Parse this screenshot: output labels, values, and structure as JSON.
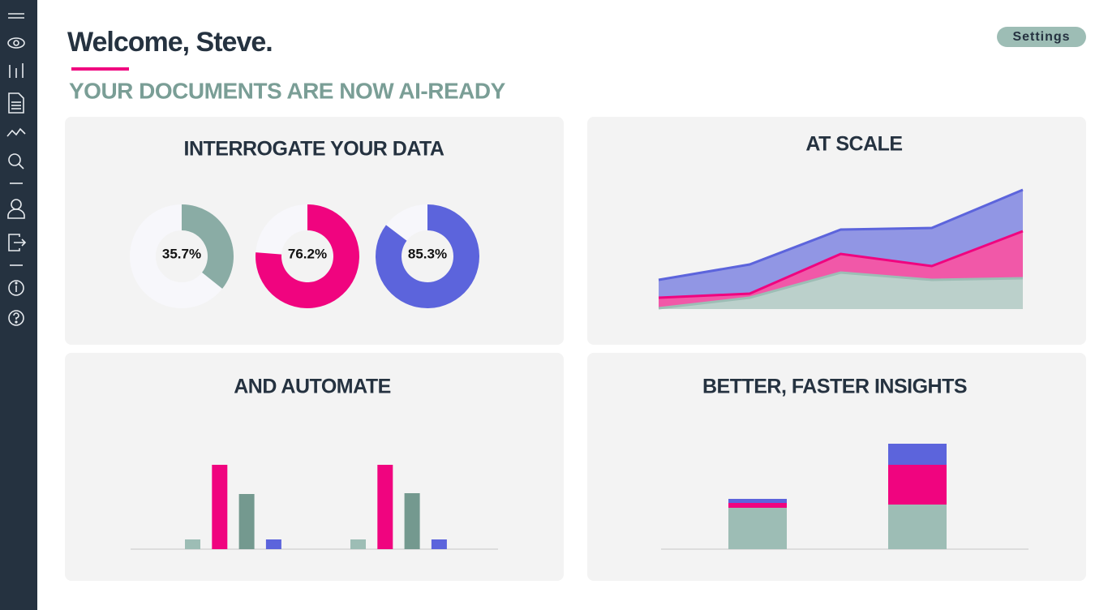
{
  "header": {
    "title": "Welcome, Steve.",
    "subtitle": "YOUR DOCUMENTS ARE NOW AI-READY",
    "settings": "Settings"
  },
  "chart_data": [
    {
      "type": "donut",
      "title": "INTERROGATE YOUR DATA",
      "values": [
        35.7,
        76.2,
        85.3
      ],
      "value_labels": [
        "35.7%",
        "76.2%",
        "85.3%"
      ],
      "colors": [
        "#8aaca5",
        "#f0047f",
        "#5c64dc"
      ],
      "ylim": [
        0,
        100
      ]
    },
    {
      "type": "area",
      "title": "AT SCALE",
      "stacked": true,
      "categories": [
        null,
        null,
        null,
        null,
        null
      ],
      "ylim": [
        0,
        150
      ],
      "series": [
        {
          "color": "#9dbdb5",
          "values": [
            1,
            14,
            45,
            36,
            38
          ]
        },
        {
          "color": "#f0047f",
          "values": [
            13,
            5,
            23,
            17,
            58
          ]
        },
        {
          "color": "#5c64dc",
          "values": [
            22,
            36,
            30,
            47,
            51
          ]
        }
      ]
    },
    {
      "type": "bar",
      "title": "AND AUTOMATE",
      "categories": [
        null,
        null
      ],
      "ylim": [
        0,
        110
      ],
      "series": [
        {
          "color": "#9dbdb5",
          "values": [
            12,
            12
          ]
        },
        {
          "color": "#f0047f",
          "values": [
            104,
            104
          ]
        },
        {
          "color": "#74998f",
          "values": [
            68,
            69
          ]
        },
        {
          "color": "#5c64dc",
          "values": [
            12,
            12
          ]
        }
      ]
    },
    {
      "type": "stacked_bar",
      "title": "BETTER, FASTER INSIGHTS",
      "categories": [
        null,
        null
      ],
      "ylim": [
        0,
        130
      ],
      "series": [
        {
          "color": "#9dbdb5",
          "values": [
            51,
            55
          ]
        },
        {
          "color": "#f0047f",
          "values": [
            6,
            49
          ]
        },
        {
          "color": "#5c64dc",
          "values": [
            5,
            26
          ]
        }
      ]
    }
  ]
}
